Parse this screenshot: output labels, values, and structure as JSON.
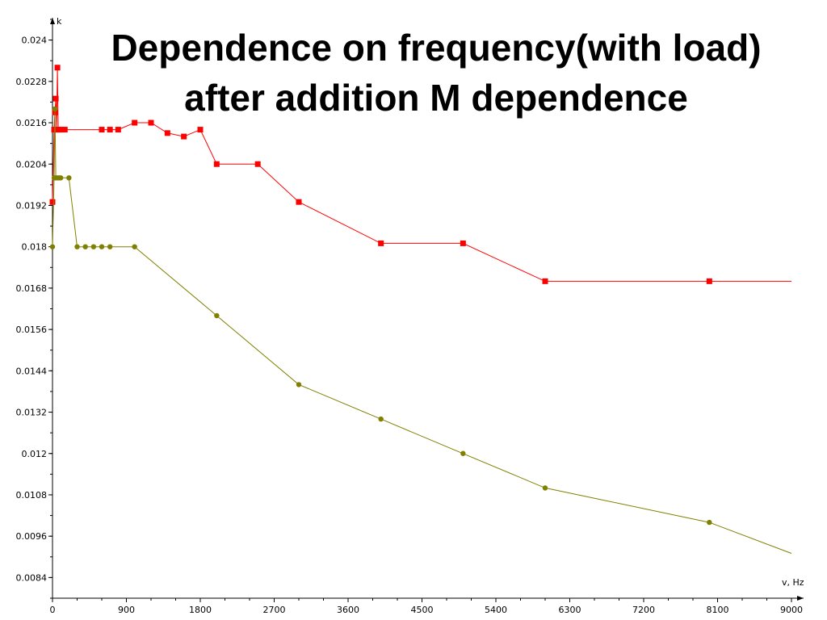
{
  "title": {
    "line1": "Dependence on frequency(with load)",
    "line2": "after addition M dependence"
  },
  "chart_data": {
    "type": "line",
    "xlabel": "v, Hz",
    "ylabel": "k",
    "xlim": [
      0,
      9000
    ],
    "ylim": [
      0.0078,
      0.0246
    ],
    "x_ticks": [
      0,
      900,
      1800,
      2700,
      3600,
      4500,
      5400,
      6300,
      7200,
      8100,
      9000
    ],
    "y_ticks": [
      0.0084,
      0.0096,
      0.0108,
      0.012,
      0.0132,
      0.0144,
      0.0156,
      0.0168,
      0.018,
      0.0192,
      0.0204,
      0.0216,
      0.0228,
      0.024
    ],
    "y_tick_labels": [
      "0.0084",
      "0.0096",
      "0.0108",
      "0.012",
      "0.0132",
      "0.0144",
      "0.0156",
      "0.0168",
      "0.018",
      "0.0192",
      "0.0204",
      "0.0216",
      "0.0228",
      "0.024"
    ],
    "grid": false,
    "series": [
      {
        "color": "#ff0000",
        "marker": "square",
        "points": [
          [
            0,
            0.0193
          ],
          [
            20,
            0.0214
          ],
          [
            30,
            0.0219
          ],
          [
            40,
            0.0223
          ],
          [
            50,
            0.0214
          ],
          [
            60,
            0.0232
          ],
          [
            70,
            0.0214
          ],
          [
            100,
            0.0214
          ],
          [
            150,
            0.0214
          ],
          [
            600,
            0.0214
          ],
          [
            700,
            0.0214
          ],
          [
            800,
            0.0214
          ],
          [
            1000,
            0.0216
          ],
          [
            1200,
            0.0216
          ],
          [
            1400,
            0.0213
          ],
          [
            1600,
            0.0212
          ],
          [
            1800,
            0.0214
          ],
          [
            2000,
            0.0204
          ],
          [
            2500,
            0.0204
          ],
          [
            3000,
            0.0193
          ],
          [
            4000,
            0.0181
          ],
          [
            5000,
            0.0181
          ],
          [
            6000,
            0.017
          ],
          [
            8000,
            0.017
          ],
          [
            9000,
            0.017
          ]
        ]
      },
      {
        "color": "#808000",
        "marker": "circle",
        "points": [
          [
            0,
            0.018
          ],
          [
            20,
            0.02
          ],
          [
            30,
            0.022
          ],
          [
            40,
            0.02
          ],
          [
            60,
            0.02
          ],
          [
            80,
            0.02
          ],
          [
            100,
            0.02
          ],
          [
            200,
            0.02
          ],
          [
            300,
            0.018
          ],
          [
            400,
            0.018
          ],
          [
            500,
            0.018
          ],
          [
            600,
            0.018
          ],
          [
            700,
            0.018
          ],
          [
            1000,
            0.018
          ],
          [
            2000,
            0.016
          ],
          [
            3000,
            0.014
          ],
          [
            4000,
            0.013
          ],
          [
            5000,
            0.012
          ],
          [
            6000,
            0.011
          ],
          [
            8000,
            0.01
          ],
          [
            9000,
            0.0091
          ]
        ]
      }
    ]
  }
}
